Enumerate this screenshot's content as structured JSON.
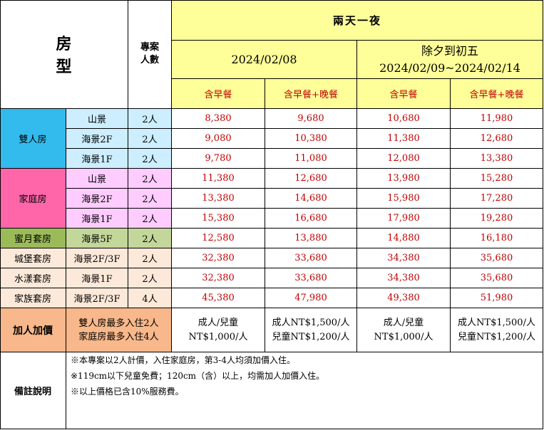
{
  "header": {
    "room_type": "房　型",
    "plan_people": [
      "專案",
      "人數"
    ],
    "period_main": "兩天一夜",
    "date1": "2024/02/08",
    "date2_title": "除夕到初五",
    "date2_range": "2024/02/09~2024/02/14",
    "sub": [
      "含早餐",
      "含早餐+晚餐",
      "含早餐",
      "含早餐+晚餐"
    ]
  },
  "groups": [
    {
      "name": "雙人房",
      "color": "#ff66cc"
    },
    {
      "name": "家庭房"
    },
    {
      "name": "蜜月套房"
    },
    {
      "name": "城堡套房"
    },
    {
      "name": "水漾套房"
    },
    {
      "name": "家族套房"
    }
  ],
  "rows": [
    {
      "view": "山景",
      "people": "2人",
      "p": [
        "8,380",
        "9,680",
        "10,680",
        "11,980"
      ]
    },
    {
      "view": "海景2F",
      "people": "2人",
      "p": [
        "9,080",
        "10,380",
        "11,380",
        "12,680"
      ]
    },
    {
      "view": "海景1F",
      "people": "2人",
      "p": [
        "9,780",
        "11,080",
        "12,080",
        "13,380"
      ]
    },
    {
      "view": "山景",
      "people": "2人",
      "p": [
        "11,380",
        "12,680",
        "13,980",
        "15,280"
      ]
    },
    {
      "view": "海景2F",
      "people": "2人",
      "p": [
        "13,380",
        "14,680",
        "15,980",
        "17,280"
      ]
    },
    {
      "view": "海景1F",
      "people": "2人",
      "p": [
        "15,380",
        "16,680",
        "17,980",
        "19,280"
      ]
    },
    {
      "view": "海景5F",
      "people": "2人",
      "p": [
        "12,580",
        "13,880",
        "14,880",
        "16,180"
      ]
    },
    {
      "view": "海景2F/3F",
      "people": "2人",
      "p": [
        "32,380",
        "33,680",
        "34,380",
        "35,680"
      ]
    },
    {
      "view": "海景1F",
      "people": "2人",
      "p": [
        "32,380",
        "33,680",
        "34,380",
        "35,680"
      ]
    },
    {
      "view": "海景2F/3F",
      "people": "4人",
      "p": [
        "45,380",
        "47,980",
        "49,380",
        "51,980"
      ]
    }
  ],
  "extra": {
    "label": "加人加價",
    "limit1": "雙人房最多入住2人",
    "limit2": "家庭房最多入住4人",
    "c1": [
      "成人/兒童",
      "NT$1,000/人"
    ],
    "c2": [
      "成人NT$1,500/人",
      "兒童NT$1,200/人"
    ],
    "c3": [
      "成人/兒童",
      "NT$1,000/人"
    ],
    "c4": [
      "成人NT$1,500/人",
      "兒童NT$1,200/人"
    ]
  },
  "notes": {
    "label": "備註說明",
    "lines": [
      "※本專案以2人計價，入住家庭房，第3-4人均須加價入住。",
      "※119cm以下兒童免費；120cm（含）以上，均需加人加價入住。",
      "※以上價格已含10%服務費。"
    ]
  }
}
